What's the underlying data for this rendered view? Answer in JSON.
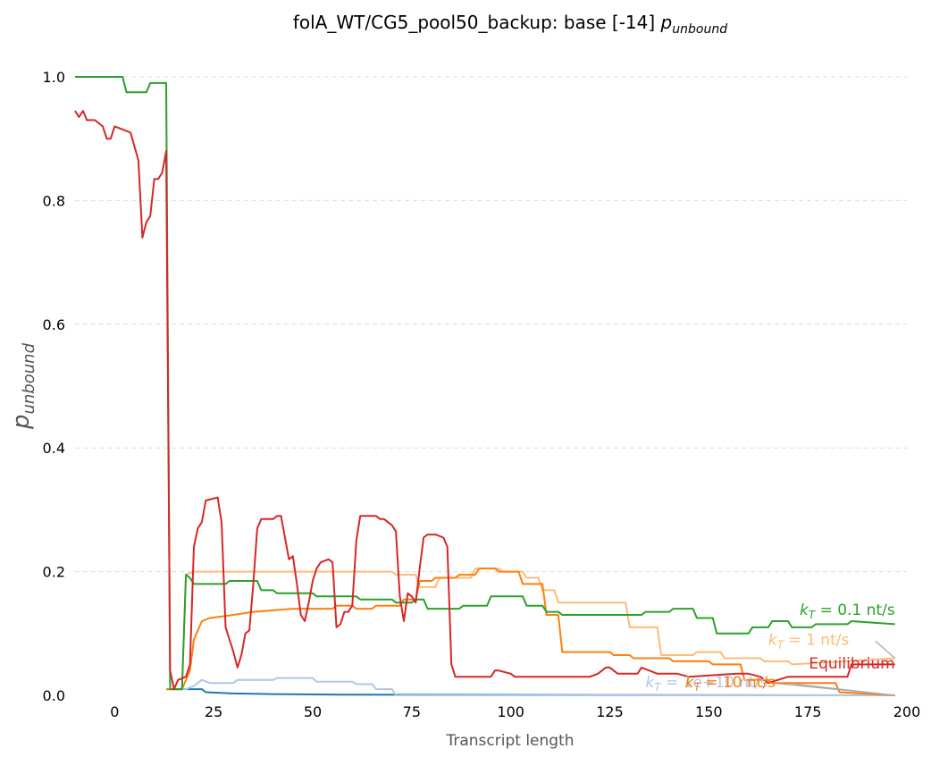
{
  "chart_data": {
    "type": "line",
    "title_prefix": "folA_WT/CG5_pool50_backup: base [-14] ",
    "title_var": "p",
    "title_sub": "unbound",
    "xlabel": "Transcript length",
    "ylabel_var": "p",
    "ylabel_sub": "unbound",
    "xlim": [
      -10,
      200
    ],
    "ylim": [
      0,
      1.05
    ],
    "xticks": [
      0,
      25,
      50,
      75,
      100,
      125,
      150,
      175,
      200
    ],
    "yticks": [
      0.0,
      0.2,
      0.4,
      0.6,
      0.8,
      1.0
    ],
    "ytick_labels": [
      "0.0",
      "0.2",
      "0.4",
      "0.6",
      "0.8",
      "1.0"
    ],
    "grid": "horizontal dashed",
    "series": [
      {
        "name": "Equilibrium",
        "color": "#d62728",
        "label_text": "Equilibrium",
        "label_anchor": [
          197,
          0.045
        ],
        "label_end": [
          197,
          0.045
        ],
        "points": [
          [
            -10,
            0.945
          ],
          [
            -9,
            0.935
          ],
          [
            -8,
            0.945
          ],
          [
            -7,
            0.93
          ],
          [
            -5,
            0.93
          ],
          [
            -3,
            0.92
          ],
          [
            -2,
            0.9
          ],
          [
            -1,
            0.9
          ],
          [
            0,
            0.92
          ],
          [
            2,
            0.915
          ],
          [
            4,
            0.91
          ],
          [
            6,
            0.865
          ],
          [
            7,
            0.74
          ],
          [
            8,
            0.765
          ],
          [
            9,
            0.775
          ],
          [
            10,
            0.835
          ],
          [
            11,
            0.835
          ],
          [
            12,
            0.845
          ],
          [
            13,
            0.88
          ],
          [
            14,
            0.04
          ],
          [
            15,
            0.01
          ],
          [
            16,
            0.025
          ],
          [
            18,
            0.03
          ],
          [
            19,
            0.05
          ],
          [
            20,
            0.24
          ],
          [
            21,
            0.27
          ],
          [
            22,
            0.28
          ],
          [
            23,
            0.315
          ],
          [
            26,
            0.32
          ],
          [
            27,
            0.28
          ],
          [
            28,
            0.11
          ],
          [
            30,
            0.07
          ],
          [
            31,
            0.045
          ],
          [
            32,
            0.065
          ],
          [
            33,
            0.1
          ],
          [
            34,
            0.105
          ],
          [
            35,
            0.18
          ],
          [
            36,
            0.27
          ],
          [
            37,
            0.285
          ],
          [
            40,
            0.285
          ],
          [
            41,
            0.29
          ],
          [
            42,
            0.29
          ],
          [
            44,
            0.22
          ],
          [
            45,
            0.225
          ],
          [
            46,
            0.18
          ],
          [
            47,
            0.13
          ],
          [
            48,
            0.12
          ],
          [
            49,
            0.15
          ],
          [
            50,
            0.185
          ],
          [
            51,
            0.205
          ],
          [
            52,
            0.215
          ],
          [
            54,
            0.22
          ],
          [
            55,
            0.215
          ],
          [
            56,
            0.11
          ],
          [
            57,
            0.115
          ],
          [
            58,
            0.135
          ],
          [
            59,
            0.135
          ],
          [
            60,
            0.145
          ],
          [
            61,
            0.25
          ],
          [
            62,
            0.29
          ],
          [
            66,
            0.29
          ],
          [
            67,
            0.285
          ],
          [
            68,
            0.285
          ],
          [
            70,
            0.275
          ],
          [
            71,
            0.265
          ],
          [
            72,
            0.16
          ],
          [
            73,
            0.12
          ],
          [
            74,
            0.165
          ],
          [
            75,
            0.16
          ],
          [
            76,
            0.15
          ],
          [
            77,
            0.205
          ],
          [
            78,
            0.255
          ],
          [
            79,
            0.26
          ],
          [
            81,
            0.26
          ],
          [
            83,
            0.255
          ],
          [
            84,
            0.24
          ],
          [
            85,
            0.05
          ],
          [
            86,
            0.03
          ],
          [
            95,
            0.03
          ],
          [
            96,
            0.04
          ],
          [
            97,
            0.04
          ],
          [
            100,
            0.035
          ],
          [
            101,
            0.03
          ],
          [
            110,
            0.03
          ],
          [
            111,
            0.03
          ],
          [
            112,
            0.03
          ],
          [
            115,
            0.03
          ],
          [
            120,
            0.03
          ],
          [
            122,
            0.035
          ],
          [
            124,
            0.045
          ],
          [
            125,
            0.045
          ],
          [
            127,
            0.035
          ],
          [
            132,
            0.035
          ],
          [
            133,
            0.045
          ],
          [
            135,
            0.04
          ],
          [
            137,
            0.035
          ],
          [
            140,
            0.035
          ],
          [
            142,
            0.035
          ],
          [
            145,
            0.03
          ],
          [
            157,
            0.035
          ],
          [
            160,
            0.035
          ],
          [
            163,
            0.03
          ],
          [
            165,
            0.02
          ],
          [
            170,
            0.03
          ],
          [
            180,
            0.03
          ],
          [
            185,
            0.03
          ],
          [
            186,
            0.05
          ],
          [
            197,
            0.05
          ]
        ]
      },
      {
        "name": "k_T = 0.1 nt/s",
        "color": "#2ca02c",
        "label_text": "k_T = 0.1 nt/s",
        "label_end": [
          197,
          0.12
        ],
        "points": [
          [
            -10,
            1.0
          ],
          [
            2,
            1.0
          ],
          [
            3,
            0.975
          ],
          [
            8,
            0.975
          ],
          [
            9,
            0.99
          ],
          [
            13,
            0.99
          ],
          [
            14,
            0.01
          ],
          [
            17,
            0.01
          ],
          [
            18,
            0.195
          ],
          [
            19,
            0.19
          ],
          [
            20,
            0.18
          ],
          [
            22,
            0.18
          ],
          [
            23,
            0.18
          ],
          [
            28,
            0.18
          ],
          [
            29,
            0.185
          ],
          [
            36,
            0.185
          ],
          [
            37,
            0.17
          ],
          [
            40,
            0.17
          ],
          [
            41,
            0.165
          ],
          [
            45,
            0.165
          ],
          [
            46,
            0.165
          ],
          [
            50,
            0.165
          ],
          [
            51,
            0.16
          ],
          [
            55,
            0.16
          ],
          [
            56,
            0.16
          ],
          [
            61,
            0.16
          ],
          [
            62,
            0.155
          ],
          [
            70,
            0.155
          ],
          [
            71,
            0.15
          ],
          [
            75,
            0.15
          ],
          [
            76,
            0.155
          ],
          [
            78,
            0.155
          ],
          [
            79,
            0.14
          ],
          [
            83,
            0.14
          ],
          [
            84,
            0.14
          ],
          [
            87,
            0.14
          ],
          [
            88,
            0.145
          ],
          [
            94,
            0.145
          ],
          [
            95,
            0.16
          ],
          [
            99,
            0.16
          ],
          [
            100,
            0.16
          ],
          [
            103,
            0.16
          ],
          [
            104,
            0.145
          ],
          [
            108,
            0.145
          ],
          [
            109,
            0.135
          ],
          [
            112,
            0.135
          ],
          [
            113,
            0.13
          ],
          [
            133,
            0.13
          ],
          [
            134,
            0.135
          ],
          [
            140,
            0.135
          ],
          [
            141,
            0.14
          ],
          [
            146,
            0.14
          ],
          [
            147,
            0.125
          ],
          [
            151,
            0.125
          ],
          [
            152,
            0.1
          ],
          [
            160,
            0.1
          ],
          [
            161,
            0.11
          ],
          [
            165,
            0.11
          ],
          [
            166,
            0.12
          ],
          [
            170,
            0.12
          ],
          [
            171,
            0.11
          ],
          [
            176,
            0.11
          ],
          [
            177,
            0.115
          ],
          [
            185,
            0.115
          ],
          [
            186,
            0.12
          ],
          [
            197,
            0.115
          ]
        ]
      },
      {
        "name": "k_T = 1 nt/s",
        "color": "#ffbb78",
        "label_text": "k_T = 1 nt/s",
        "label_end": [
          197,
          0.06
        ],
        "points": [
          [
            13,
            0.01
          ],
          [
            17,
            0.01
          ],
          [
            18,
            0.195
          ],
          [
            20,
            0.2
          ],
          [
            70,
            0.2
          ],
          [
            71,
            0.195
          ],
          [
            76,
            0.195
          ],
          [
            77,
            0.175
          ],
          [
            81,
            0.175
          ],
          [
            82,
            0.19
          ],
          [
            84,
            0.19
          ],
          [
            90,
            0.19
          ],
          [
            91,
            0.205
          ],
          [
            97,
            0.205
          ],
          [
            98,
            0.2
          ],
          [
            103,
            0.2
          ],
          [
            104,
            0.19
          ],
          [
            107,
            0.19
          ],
          [
            108,
            0.17
          ],
          [
            111,
            0.17
          ],
          [
            112,
            0.15
          ],
          [
            129,
            0.15
          ],
          [
            130,
            0.11
          ],
          [
            137,
            0.11
          ],
          [
            138,
            0.065
          ],
          [
            146,
            0.065
          ],
          [
            147,
            0.07
          ],
          [
            153,
            0.07
          ],
          [
            154,
            0.06
          ],
          [
            163,
            0.06
          ],
          [
            164,
            0.055
          ],
          [
            170,
            0.055
          ],
          [
            171,
            0.05
          ],
          [
            197,
            0.06
          ]
        ]
      },
      {
        "name": "k_T = 10 nt/s",
        "color": "#ff7f0e",
        "label_text": "k_T = 10 nt/s",
        "label_end": [
          197,
          0.0
        ],
        "points": [
          [
            13,
            0.01
          ],
          [
            17,
            0.01
          ],
          [
            19,
            0.04
          ],
          [
            20,
            0.09
          ],
          [
            22,
            0.12
          ],
          [
            24,
            0.125
          ],
          [
            30,
            0.13
          ],
          [
            35,
            0.135
          ],
          [
            45,
            0.14
          ],
          [
            55,
            0.14
          ],
          [
            56,
            0.145
          ],
          [
            60,
            0.145
          ],
          [
            61,
            0.14
          ],
          [
            65,
            0.14
          ],
          [
            66,
            0.145
          ],
          [
            72,
            0.145
          ],
          [
            73,
            0.155
          ],
          [
            76,
            0.155
          ],
          [
            77,
            0.185
          ],
          [
            80,
            0.185
          ],
          [
            81,
            0.19
          ],
          [
            86,
            0.19
          ],
          [
            87,
            0.195
          ],
          [
            91,
            0.195
          ],
          [
            92,
            0.205
          ],
          [
            96,
            0.205
          ],
          [
            97,
            0.2
          ],
          [
            102,
            0.2
          ],
          [
            103,
            0.18
          ],
          [
            108,
            0.18
          ],
          [
            109,
            0.13
          ],
          [
            112,
            0.13
          ],
          [
            113,
            0.07
          ],
          [
            125,
            0.07
          ],
          [
            126,
            0.065
          ],
          [
            130,
            0.065
          ],
          [
            131,
            0.06
          ],
          [
            140,
            0.06
          ],
          [
            141,
            0.055
          ],
          [
            150,
            0.055
          ],
          [
            151,
            0.05
          ],
          [
            158,
            0.05
          ],
          [
            159,
            0.025
          ],
          [
            165,
            0.025
          ],
          [
            166,
            0.02
          ],
          [
            182,
            0.02
          ],
          [
            183,
            0.005
          ],
          [
            197,
            0.0
          ]
        ]
      },
      {
        "name": "k_T = 1e+10 nt/s",
        "color": "#aec7e8",
        "label_text": "k_T = 1e+10 nt/s",
        "label_end": [
          197,
          0.0
        ],
        "points": [
          [
            13,
            0.01
          ],
          [
            17,
            0.01
          ],
          [
            18,
            0.01
          ],
          [
            20,
            0.015
          ],
          [
            22,
            0.025
          ],
          [
            24,
            0.02
          ],
          [
            30,
            0.02
          ],
          [
            31,
            0.025
          ],
          [
            40,
            0.025
          ],
          [
            41,
            0.028
          ],
          [
            50,
            0.028
          ],
          [
            51,
            0.022
          ],
          [
            60,
            0.022
          ],
          [
            61,
            0.018
          ],
          [
            65,
            0.018
          ],
          [
            66,
            0.01
          ],
          [
            70,
            0.01
          ],
          [
            71,
            0.0
          ],
          [
            197,
            0.0
          ]
        ]
      },
      {
        "name": "k_T = 1e+1",
        "color": "#1f77b4",
        "label_text": "",
        "label_end": [
          197,
          0.0
        ],
        "points": [
          [
            13,
            0.01
          ],
          [
            17,
            0.01
          ],
          [
            20,
            0.01
          ],
          [
            22,
            0.01
          ],
          [
            23,
            0.005
          ],
          [
            30,
            0.003
          ],
          [
            40,
            0.002
          ],
          [
            60,
            0.001
          ],
          [
            197,
            0.0
          ]
        ]
      }
    ],
    "labels": [
      {
        "series": 1,
        "text_pre": "k",
        "text_sub": "T",
        "text_post": " = 0.1 nt/s",
        "anchor": [
          197,
          0.13
        ],
        "color": "#2ca02c"
      },
      {
        "series": 2,
        "text_pre": "k",
        "text_sub": "T",
        "text_post": " = 1 nt/s",
        "anchor": [
          165,
          0.082
        ],
        "color": "#ffbb78"
      },
      {
        "series": 0,
        "text_pre": "",
        "text_sub": "",
        "text_post": "Equilibrium",
        "anchor": [
          197,
          0.043
        ],
        "color": "#d62728"
      },
      {
        "series": 4,
        "text_pre": "k",
        "text_sub": "T",
        "text_post": " = 1e+10 nt/s",
        "anchor": [
          134,
          0.013
        ],
        "color": "#aec7e8"
      },
      {
        "series": 3,
        "text_pre": "k",
        "text_sub": "T",
        "text_post": " = 10 nt/s",
        "anchor": [
          144,
          0.013
        ],
        "color": "#ff7f0e"
      }
    ]
  }
}
